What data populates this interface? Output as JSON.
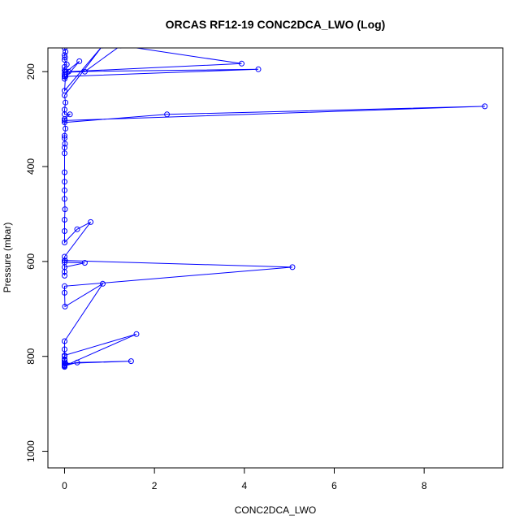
{
  "chart_data": {
    "type": "line",
    "title": "ORCAS RF12-19 CONC2DCA_LWO (Log)",
    "xlabel": "CONC2DCA_LWO",
    "ylabel": "Pressure (mbar)",
    "xlim": [
      -0.37,
      9.75
    ],
    "ylim": [
      1035,
      150
    ],
    "y_reversed": true,
    "x_ticks": [
      "0",
      "2",
      "4",
      "6",
      "8"
    ],
    "x_tick_values": [
      0,
      2,
      4,
      6,
      8
    ],
    "y_ticks": [
      "200",
      "400",
      "600",
      "800",
      "1000"
    ],
    "y_tick_values": [
      200,
      400,
      600,
      800,
      1000
    ],
    "grid": false,
    "legend": "none",
    "series_color": "#0000ff",
    "series": [
      {
        "x": [
          0,
          0.02,
          0,
          0.01,
          0,
          0.05,
          0,
          0,
          0.01,
          0,
          0,
          0,
          0.33,
          0.03,
          0.45,
          1.25,
          3.94,
          0.09,
          4.31,
          0.02,
          0,
          0.85,
          0,
          0.02,
          0,
          0,
          0.12,
          0,
          0,
          9.35,
          2.28,
          0,
          0.02,
          0,
          0,
          0.01,
          0,
          0,
          0,
          0,
          0,
          0,
          0.01,
          0,
          0,
          0,
          0.28,
          0.58,
          0,
          0.01,
          0,
          0.45,
          0,
          0,
          0,
          0,
          5.07,
          0,
          0,
          0.01,
          0.85,
          0,
          0,
          0,
          0,
          0,
          0,
          1.6,
          0,
          0,
          0.02,
          0,
          0.28,
          1.48,
          0,
          0,
          0,
          0
        ],
        "y": [
          150,
          158,
          165,
          170,
          175,
          185,
          190,
          197,
          200,
          205,
          210,
          215,
          178,
          201,
          200,
          145,
          183,
          200,
          195,
          210,
          240,
          145,
          250,
          265,
          280,
          290,
          290,
          300,
          303,
          273,
          290,
          307,
          320,
          335,
          340,
          352,
          360,
          372,
          412,
          432,
          450,
          468,
          490,
          512,
          536,
          560,
          532,
          517,
          590,
          598,
          602,
          603,
          612,
          622,
          630,
          598,
          612,
          652,
          666,
          695,
          647,
          768,
          785,
          800,
          806,
          812,
          820,
          753,
          798,
          808,
          815,
          820,
          813,
          810,
          815,
          818,
          820,
          822
        ]
      }
    ]
  }
}
